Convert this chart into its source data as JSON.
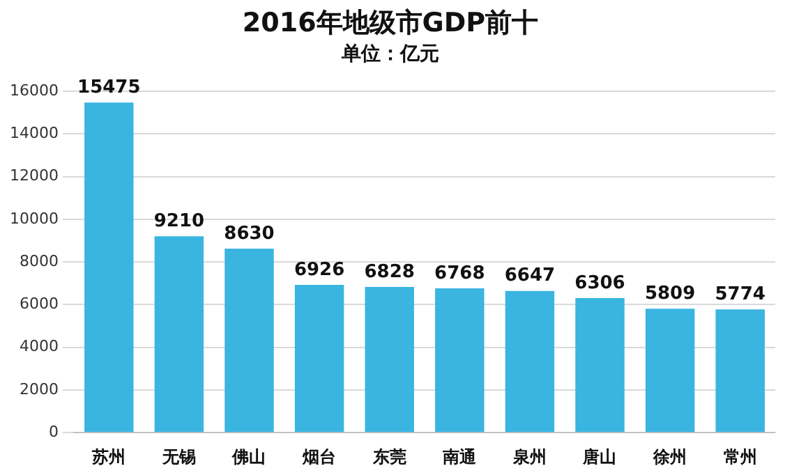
{
  "chart_data": {
    "type": "bar",
    "title": "2016年地级市GDP前十",
    "subtitle": "单位：亿元",
    "categories": [
      "苏州",
      "无锡",
      "佛山",
      "烟台",
      "东莞",
      "南通",
      "泉州",
      "唐山",
      "徐州",
      "常州"
    ],
    "values": [
      15475,
      9210,
      8630,
      6926,
      6828,
      6768,
      6647,
      6306,
      5809,
      5774
    ],
    "color": "#3ab4e0",
    "ylim": [
      0,
      16000
    ],
    "yticks": [
      0,
      2000,
      4000,
      6000,
      8000,
      10000,
      12000,
      14000,
      16000
    ],
    "grid": "y",
    "data_labels": true
  }
}
